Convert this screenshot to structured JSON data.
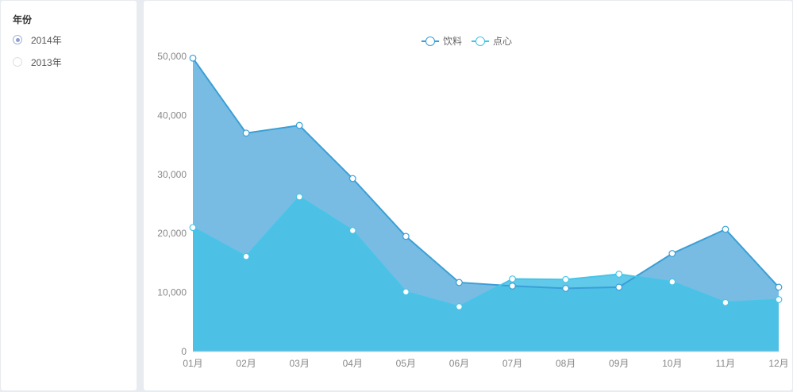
{
  "filter": {
    "title": "年份",
    "options": [
      {
        "label": "2014年",
        "selected": true
      },
      {
        "label": "2013年",
        "selected": false
      }
    ]
  },
  "colors": {
    "series1_line": "#3a9fd6",
    "series1_fill": "#78bce4",
    "series2_line": "#46c4e6",
    "series2_fill": "#45c1e6",
    "axis_text": "#888888",
    "axis_line": "#cccccc"
  },
  "chart_data": {
    "type": "area",
    "categories": [
      "01月",
      "02月",
      "03月",
      "04月",
      "05月",
      "06月",
      "07月",
      "08月",
      "09月",
      "10月",
      "11月",
      "12月"
    ],
    "ylim": [
      0,
      50000
    ],
    "yticks": [
      0,
      10000,
      20000,
      30000,
      40000,
      50000
    ],
    "ytick_labels": [
      "0",
      "10,000",
      "20,000",
      "30,000",
      "40,000",
      "50,000"
    ],
    "legend_position": "top-center",
    "grid": false,
    "series": [
      {
        "name": "饮料",
        "values": [
          49700,
          37000,
          38300,
          29300,
          19500,
          11700,
          11100,
          10700,
          10900,
          16600,
          20700,
          10900
        ]
      },
      {
        "name": "点心",
        "values": [
          21000,
          16100,
          26200,
          20500,
          10100,
          7600,
          12300,
          12200,
          13100,
          11800,
          8300,
          8800
        ]
      }
    ]
  }
}
